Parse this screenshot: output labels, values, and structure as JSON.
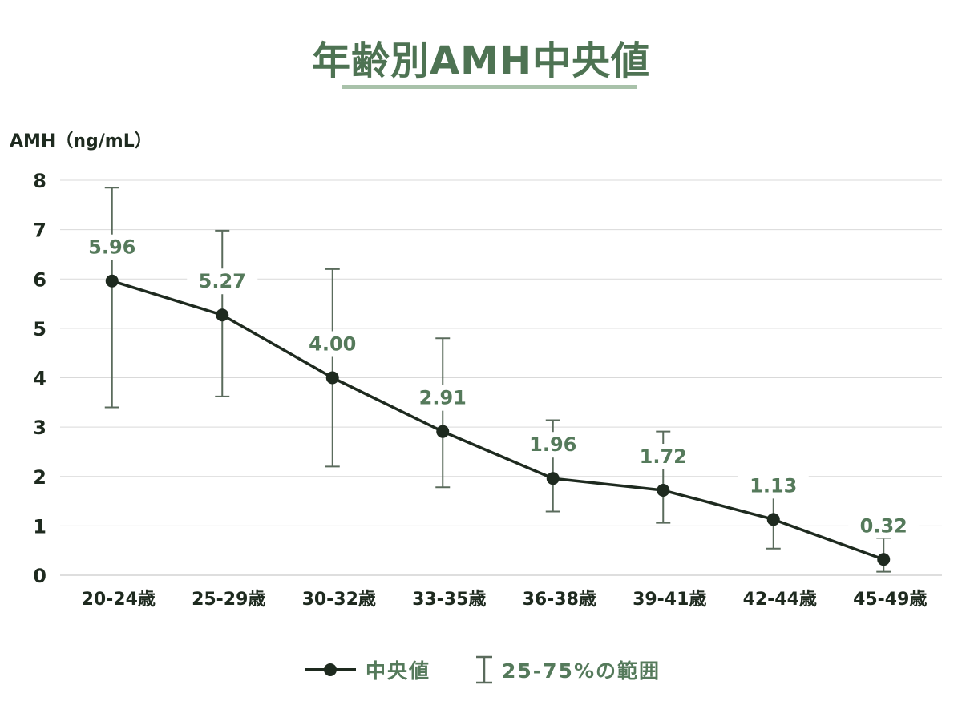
{
  "chart_data": {
    "type": "line",
    "title": "年齢別AMH中央値",
    "ylabel": "AMH（ng/mL）",
    "xlabel": "",
    "ylim": [
      0,
      8
    ],
    "yticks": [
      "0",
      "1",
      "2",
      "3",
      "4",
      "5",
      "6",
      "7",
      "8"
    ],
    "grid": true,
    "legend_position": "bottom",
    "categories": [
      "20-24歳",
      "25-29歳",
      "30-32歳",
      "33-35歳",
      "36-38歳",
      "39-41歳",
      "42-44歳",
      "45-49歳"
    ],
    "series": [
      {
        "name": "中央値",
        "values": [
          5.96,
          5.27,
          4.0,
          2.91,
          1.96,
          1.72,
          1.13,
          0.32
        ],
        "labels": [
          "5.96",
          "5.27",
          "4.00",
          "2.91",
          "1.96",
          "1.72",
          "1.13",
          "0.32"
        ],
        "color": "#1e2a1f"
      }
    ],
    "error_range": {
      "name": "25-75%の範囲",
      "low": [
        3.4,
        3.62,
        2.2,
        1.78,
        1.29,
        1.06,
        0.54,
        0.07
      ],
      "high": [
        7.85,
        6.98,
        6.2,
        4.8,
        3.14,
        2.91,
        1.95,
        0.75
      ],
      "color": "#5a6b5c"
    },
    "colors": {
      "title": "#4e7353",
      "title_underline": "#a9c2aa",
      "data_label": "#557a5b",
      "grid": "#d9d9d9",
      "axis_text": "#1e2a1f"
    }
  },
  "legend": {
    "median_label": "中央値",
    "range_label": "25-75%の範囲"
  }
}
